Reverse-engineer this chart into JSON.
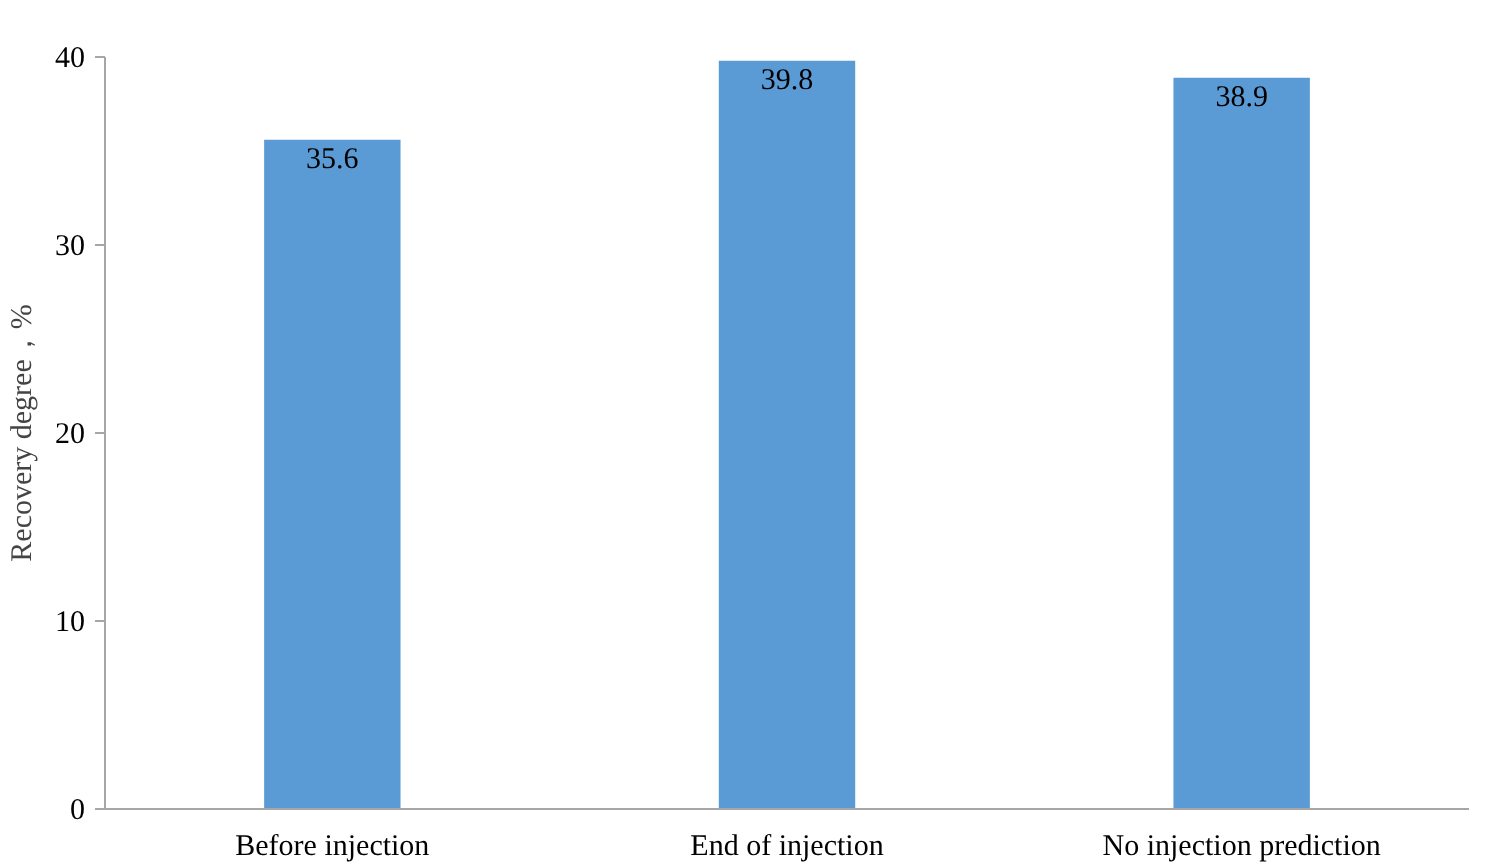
{
  "chart_data": {
    "type": "bar",
    "ylabel": "Recovery degree，%",
    "categories": [
      "Before injection",
      "End of injection",
      "No injection prediction"
    ],
    "values": [
      35.6,
      39.8,
      38.9
    ],
    "color": "#5b9bd5",
    "ylim": [
      0,
      40
    ],
    "yticks": [
      0,
      10,
      20,
      30,
      40
    ],
    "grid": false,
    "data_labels": true
  }
}
